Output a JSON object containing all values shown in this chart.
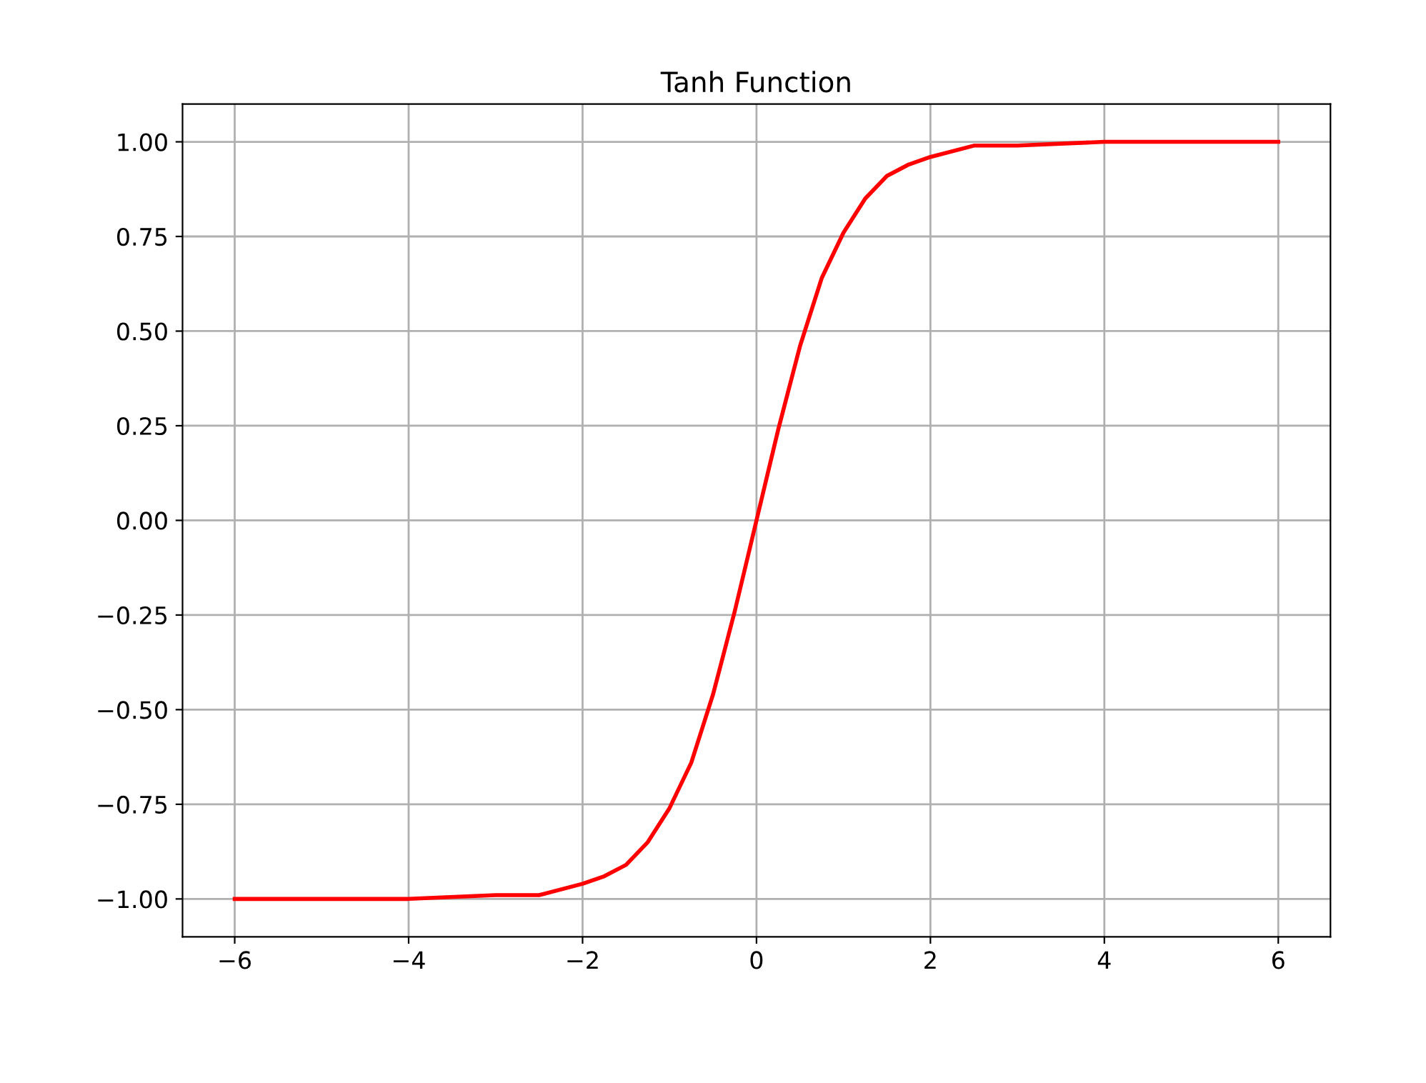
{
  "chart_data": {
    "type": "line",
    "title": "Tanh Function",
    "x": [
      -6,
      -5,
      -4,
      -3,
      -2.5,
      -2,
      -1.75,
      -1.5,
      -1.25,
      -1,
      -0.75,
      -0.5,
      -0.25,
      0,
      0.25,
      0.5,
      0.75,
      1,
      1.25,
      1.5,
      1.75,
      2,
      2.5,
      3,
      4,
      5,
      6
    ],
    "series": [
      {
        "color": "#ff0000",
        "values": [
          -1.0,
          -1.0,
          -1.0,
          -0.99,
          -0.99,
          -0.96,
          -0.94,
          -0.91,
          -0.85,
          -0.76,
          -0.64,
          -0.46,
          -0.24,
          0.0,
          0.24,
          0.46,
          0.64,
          0.76,
          0.85,
          0.91,
          0.94,
          0.96,
          0.99,
          0.99,
          1.0,
          1.0,
          1.0
        ]
      }
    ],
    "xlim": [
      -6.6,
      6.6
    ],
    "ylim": [
      -1.1,
      1.1
    ],
    "xticks": [
      {
        "value": -6,
        "label": "−6"
      },
      {
        "value": -4,
        "label": "−4"
      },
      {
        "value": -2,
        "label": "−2"
      },
      0,
      2,
      4,
      6
    ],
    "yticks": [
      {
        "value": -1,
        "label": "−1.00"
      },
      {
        "value": -0.75,
        "label": "−0.75"
      },
      {
        "value": -0.5,
        "label": "−0.50"
      },
      {
        "value": -0.25,
        "label": "−0.25"
      },
      {
        "value": 0,
        "label": "0.00"
      },
      {
        "value": 0.25,
        "label": "0.25"
      },
      {
        "value": 0.5,
        "label": "0.50"
      },
      {
        "value": 0.75,
        "label": "0.75"
      },
      {
        "value": 1,
        "label": "1.00"
      }
    ],
    "grid": true,
    "line_style": "solid"
  }
}
